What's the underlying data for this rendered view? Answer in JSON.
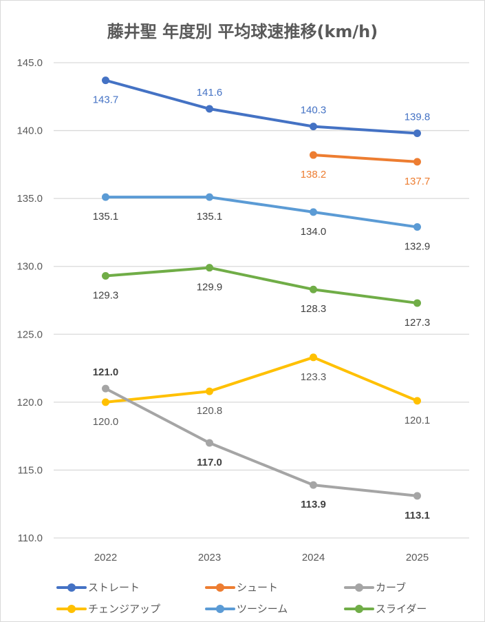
{
  "chart_data": {
    "type": "line",
    "title": "藤井聖 年度別 平均球速推移(km/h)",
    "xlabel": "",
    "ylabel": "",
    "categories": [
      "2022",
      "2023",
      "2024",
      "2025"
    ],
    "ylim": [
      110.0,
      145.0
    ],
    "yticks": [
      "110.0",
      "115.0",
      "120.0",
      "125.0",
      "130.0",
      "135.0",
      "140.0",
      "145.0"
    ],
    "grid": true,
    "legend_position": "bottom",
    "series": [
      {
        "name": "ストレート",
        "color": "#4472C4",
        "values": [
          143.7,
          141.6,
          140.3,
          139.8
        ],
        "labels": [
          "143.7",
          "141.6",
          "140.3",
          "139.8"
        ],
        "label_color": "#4472C4",
        "label_bold": false
      },
      {
        "name": "シュート",
        "color": "#ED7D31",
        "values": [
          null,
          null,
          138.2,
          137.7
        ],
        "labels": [
          null,
          null,
          "138.2",
          "137.7"
        ],
        "label_color": "#ED7D31",
        "label_bold": false
      },
      {
        "name": "カーブ",
        "color": "#A5A5A5",
        "values": [
          121.0,
          117.0,
          113.9,
          113.1
        ],
        "labels": [
          "121.0",
          "117.0",
          "113.9",
          "113.1"
        ],
        "label_color": "#404040",
        "label_bold": true
      },
      {
        "name": "チェンジアップ",
        "color": "#FFC000",
        "values": [
          120.0,
          120.8,
          123.3,
          120.1
        ],
        "labels": [
          "120.0",
          "120.8",
          "123.3",
          "120.1"
        ],
        "label_color": "#595959",
        "label_bold": false
      },
      {
        "name": "ツーシーム",
        "color": "#5B9BD5",
        "values": [
          135.1,
          135.1,
          134.0,
          132.9
        ],
        "labels": [
          "135.1",
          "135.1",
          "134.0",
          "132.9"
        ],
        "label_color": "#404040",
        "label_bold": false
      },
      {
        "name": "スライダー",
        "color": "#70AD47",
        "values": [
          129.3,
          129.9,
          128.3,
          127.3
        ],
        "labels": [
          "129.3",
          "129.9",
          "128.3",
          "127.3"
        ],
        "label_color": "#404040",
        "label_bold": false
      }
    ],
    "label_placement": [
      [
        "below",
        "above",
        "above",
        "above"
      ],
      [
        null,
        null,
        "below",
        "below"
      ],
      [
        "above",
        "below",
        "below",
        "below"
      ],
      [
        "below",
        "below",
        "below",
        "below"
      ],
      [
        "below",
        "below",
        "below",
        "below"
      ],
      [
        "below",
        "below",
        "below",
        "below"
      ]
    ]
  }
}
